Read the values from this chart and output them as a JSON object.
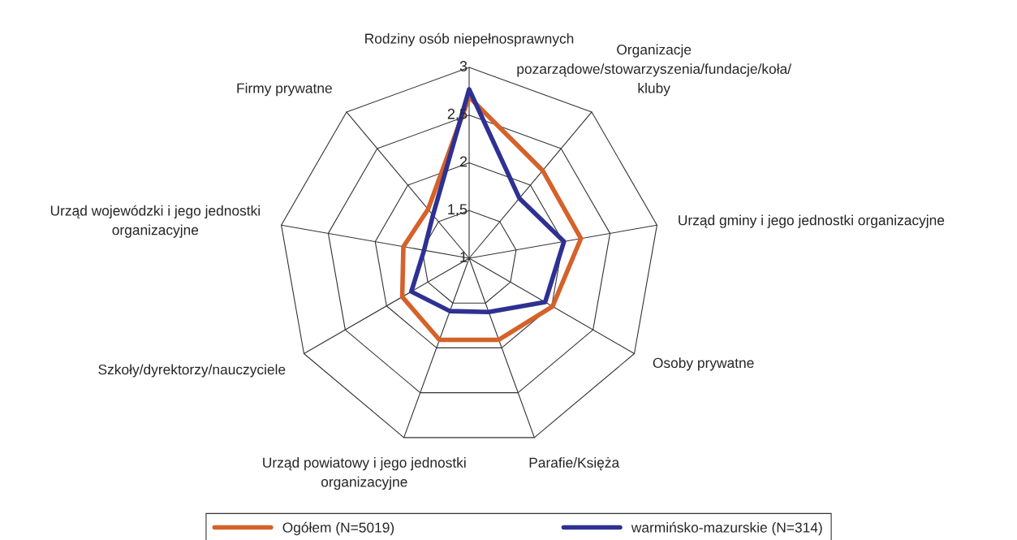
{
  "chart_data": {
    "type": "radar",
    "categories": [
      "Rodziny osób niepełnosprawnych",
      "Organizacje\npozarządowe/stowarzyszenia/fundacje/koła/\nkluby",
      "Urząd gminy i jego jednostki organizacyjne",
      "Osoby prywatne",
      "Parafie/Księża",
      "Urząd powiatowy i jego jednostki\norganizacyjne",
      "Szkoły/dyrektorzy/nauczyciele",
      "Urząd wojewódzki i jego jednostki\norganizacyjne",
      "Firmy prywatne"
    ],
    "series": [
      {
        "name": "Ogółem (N=5019)",
        "color": "#d4622a",
        "values": [
          2.69,
          2.2,
          2.19,
          2.01,
          1.91,
          1.91,
          1.81,
          1.7,
          1.67
        ]
      },
      {
        "name": "warmińsko-mazurskie (N=314)",
        "color": "#2e3192",
        "values": [
          2.77,
          1.82,
          2.01,
          1.92,
          1.6,
          1.59,
          1.7,
          1.48,
          1.59
        ]
      }
    ],
    "ylim": [
      1,
      3
    ],
    "yticks": [
      {
        "value": 1,
        "label": "1"
      },
      {
        "value": 1.5,
        "label": "1,5"
      },
      {
        "value": 2,
        "label": "2"
      },
      {
        "value": 2.5,
        "label": "2,5"
      },
      {
        "value": 3,
        "label": "3"
      }
    ],
    "legend": "bottom",
    "marker": "none",
    "line_style": "solid"
  }
}
